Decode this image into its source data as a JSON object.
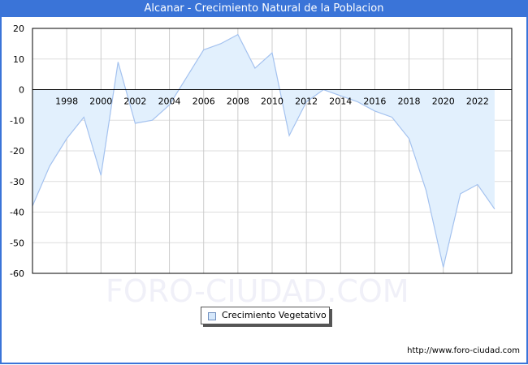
{
  "window": {
    "title": "Alcanar - Crecimiento Natural de la Poblacion",
    "title_bar_color": "#3a74d8"
  },
  "watermark": "FORO-CIUDAD.COM",
  "footer": {
    "url": "http://www.foro-ciudad.com"
  },
  "legend": {
    "label": "Crecimiento Vegetativo"
  },
  "chart_data": {
    "type": "area",
    "title": "Alcanar - Crecimiento Natural de la Poblacion",
    "xlabel": "",
    "ylabel": "",
    "x": [
      1996,
      1997,
      1998,
      1999,
      2000,
      2001,
      2002,
      2003,
      2004,
      2005,
      2006,
      2007,
      2008,
      2009,
      2010,
      2011,
      2012,
      2013,
      2014,
      2015,
      2016,
      2017,
      2018,
      2019,
      2020,
      2021,
      2022,
      2023
    ],
    "series": [
      {
        "name": "Crecimiento Vegetativo",
        "values": [
          -38,
          -25,
          -16,
          -9,
          -28,
          9,
          -11,
          -10,
          -5,
          4,
          13,
          15,
          18,
          7,
          12,
          -15,
          -4,
          0,
          -2,
          -4,
          -7,
          -9,
          -16,
          -33,
          -58,
          -34,
          -31,
          -39
        ],
        "line_color": "#a4c2ef",
        "fill_color": "#e2f0fd"
      }
    ],
    "x_tick_labels": [
      "1998",
      "2000",
      "2002",
      "2004",
      "2006",
      "2008",
      "2010",
      "2012",
      "2014",
      "2016",
      "2018",
      "2020",
      "2022"
    ],
    "y_tick_labels": [
      "20",
      "10",
      "0",
      "-10",
      "-20",
      "-30",
      "-40",
      "-50",
      "-60"
    ],
    "ylim": [
      -60,
      20
    ],
    "xlim": [
      1996,
      2024
    ],
    "grid": true,
    "legend_position": "bottom-center"
  }
}
